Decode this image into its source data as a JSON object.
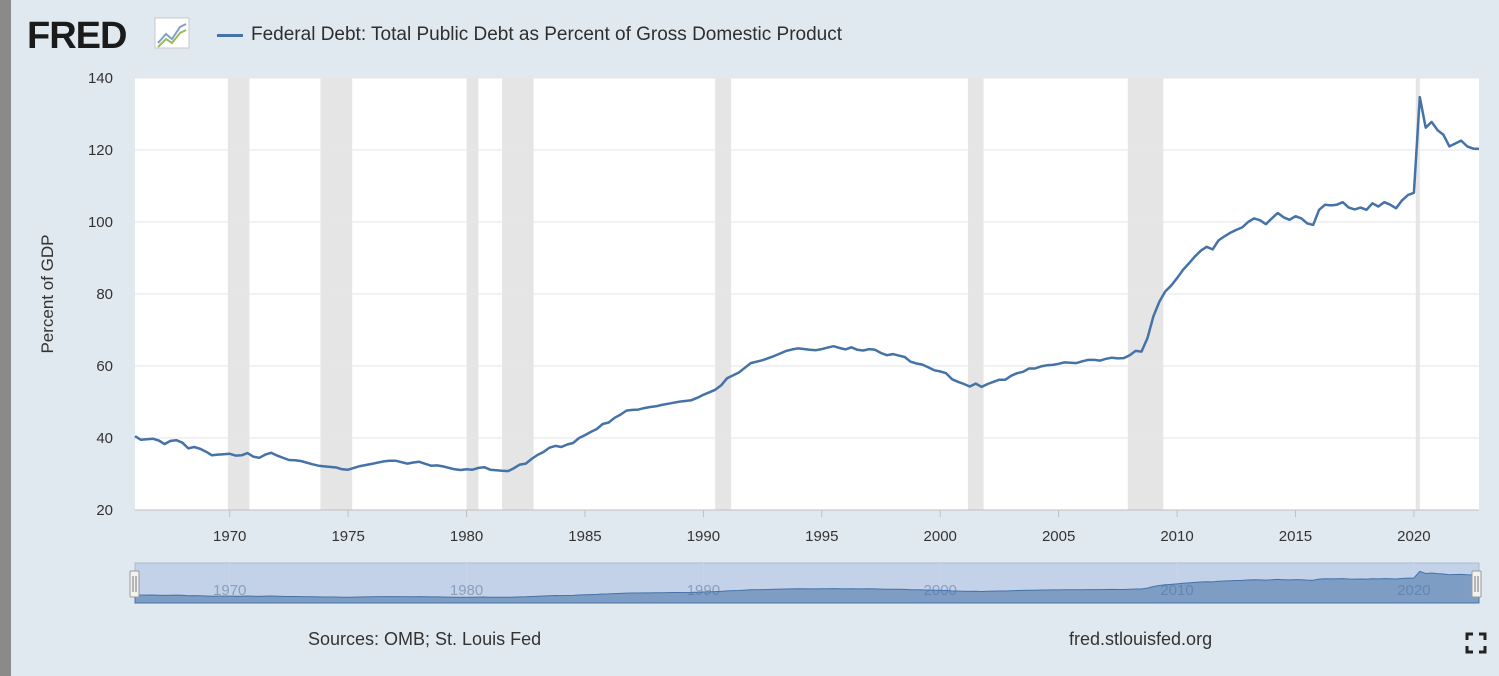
{
  "header": {
    "logo_text": "FRED",
    "legend_label": "Federal Debt: Total Public Debt as Percent of Gross Domestic Product"
  },
  "footer": {
    "sources": "Sources: OMB; St. Louis Fed",
    "site": "fred.stlouisfed.org"
  },
  "colors": {
    "series": "#4572a7",
    "recession": "#e5e5e5",
    "navigator_fill": "#b5c8e4",
    "background": "#e1e9f0"
  },
  "chart_data": {
    "type": "line",
    "title": "",
    "xlabel": "",
    "ylabel": "Percent of GDP",
    "xlim": [
      1966.0,
      2022.75
    ],
    "ylim": [
      20,
      140
    ],
    "yticks": [
      20,
      40,
      60,
      80,
      100,
      120,
      140
    ],
    "xticks": [
      1970,
      1975,
      1980,
      1985,
      1990,
      1995,
      2000,
      2005,
      2010,
      2015,
      2020
    ],
    "navigator_ticks": [
      1970,
      1980,
      1990,
      2000,
      2010,
      2020
    ],
    "grid": true,
    "legend": "top-left",
    "recessions": [
      [
        1969.92,
        1970.83
      ],
      [
        1973.83,
        1975.17
      ],
      [
        1980.0,
        1980.5
      ],
      [
        1981.5,
        1982.83
      ],
      [
        1990.5,
        1991.17
      ],
      [
        2001.17,
        2001.83
      ],
      [
        2007.92,
        2009.42
      ],
      [
        2020.08,
        2020.25
      ]
    ],
    "series": [
      {
        "name": "Federal Debt: Total Public Debt as Percent of Gross Domestic Product",
        "x": [
          1966.0,
          1966.25,
          1966.75,
          1967.0,
          1967.25,
          1967.5,
          1967.75,
          1968.0,
          1968.25,
          1968.5,
          1968.75,
          1969.0,
          1969.25,
          1969.5,
          1969.75,
          1970.0,
          1970.25,
          1970.5,
          1970.75,
          1971.0,
          1971.25,
          1971.5,
          1971.75,
          1972.0,
          1972.5,
          1972.75,
          1973.0,
          1973.5,
          1973.75,
          1974.0,
          1974.5,
          1974.75,
          1975.0,
          1975.5,
          1975.75,
          1976.0,
          1976.5,
          1976.75,
          1977.0,
          1977.5,
          1977.75,
          1978.0,
          1978.5,
          1978.75,
          1979.0,
          1979.5,
          1979.75,
          1980.0,
          1980.25,
          1980.5,
          1980.75,
          1981.0,
          1981.5,
          1981.75,
          1982.0,
          1982.25,
          1982.5,
          1982.75,
          1983.0,
          1983.25,
          1983.5,
          1983.75,
          1984.0,
          1984.25,
          1984.5,
          1984.75,
          1985.0,
          1985.25,
          1985.5,
          1985.75,
          1986.0,
          1986.25,
          1986.5,
          1986.75,
          1987.0,
          1987.25,
          1987.5,
          1987.75,
          1988.0,
          1988.25,
          1988.5,
          1988.75,
          1989.0,
          1989.5,
          1989.75,
          1990.0,
          1990.5,
          1990.75,
          1991.0,
          1991.25,
          1991.5,
          1991.75,
          1992.0,
          1992.5,
          1992.75,
          1993.0,
          1993.25,
          1993.5,
          1993.75,
          1994.0,
          1994.5,
          1994.75,
          1995.0,
          1995.25,
          1995.5,
          1995.75,
          1996.0,
          1996.25,
          1996.5,
          1996.75,
          1997.0,
          1997.25,
          1997.5,
          1997.75,
          1998.0,
          1998.25,
          1998.5,
          1998.75,
          1999.0,
          1999.25,
          1999.5,
          1999.75,
          2000.0,
          2000.25,
          2000.5,
          2000.75,
          2001.0,
          2001.25,
          2001.5,
          2001.75,
          2002.0,
          2002.25,
          2002.5,
          2002.75,
          2003.0,
          2003.25,
          2003.5,
          2003.75,
          2004.0,
          2004.25,
          2004.5,
          2004.75,
          2005.0,
          2005.25,
          2005.5,
          2005.75,
          2006.0,
          2006.25,
          2006.5,
          2006.75,
          2007.0,
          2007.25,
          2007.5,
          2007.75,
          2008.0,
          2008.25,
          2008.5,
          2008.75,
          2009.0,
          2009.25,
          2009.5,
          2009.75,
          2010.0,
          2010.25,
          2010.5,
          2010.75,
          2011.0,
          2011.25,
          2011.5,
          2011.75,
          2012.0,
          2012.25,
          2012.5,
          2012.75,
          2013.0,
          2013.25,
          2013.5,
          2013.75,
          2014.0,
          2014.25,
          2014.5,
          2014.75,
          2015.0,
          2015.25,
          2015.5,
          2015.75,
          2016.0,
          2016.25,
          2016.5,
          2016.75,
          2017.0,
          2017.25,
          2017.5,
          2017.75,
          2018.0,
          2018.25,
          2018.5,
          2018.75,
          2019.0,
          2019.25,
          2019.5,
          2019.75,
          2020.0,
          2020.25,
          2020.5,
          2020.75,
          2021.0,
          2021.25,
          2021.5,
          2021.75,
          2022.0,
          2022.25,
          2022.5,
          2022.75
        ],
        "values": [
          40.5,
          39.5,
          39.8,
          39.3,
          38.3,
          39.2,
          39.4,
          38.7,
          37.1,
          37.5,
          37.0,
          36.2,
          35.2,
          35.4,
          35.5,
          35.6,
          35.1,
          35.2,
          35.8,
          34.8,
          34.5,
          35.4,
          35.9,
          35.1,
          33.9,
          33.8,
          33.6,
          32.7,
          32.3,
          32.1,
          31.8,
          31.3,
          31.2,
          32.2,
          32.5,
          32.8,
          33.5,
          33.7,
          33.7,
          32.9,
          33.2,
          33.4,
          32.3,
          32.4,
          32.1,
          31.3,
          31.1,
          31.3,
          31.2,
          31.7,
          31.9,
          31.2,
          30.9,
          30.8,
          31.6,
          32.6,
          32.9,
          34.2,
          35.3,
          36.1,
          37.3,
          37.8,
          37.5,
          38.2,
          38.6,
          40.0,
          40.8,
          41.7,
          42.5,
          43.9,
          44.3,
          45.6,
          46.5,
          47.6,
          47.8,
          47.9,
          48.3,
          48.6,
          48.8,
          49.2,
          49.5,
          49.8,
          50.1,
          50.5,
          51.2,
          52.0,
          53.4,
          54.6,
          56.6,
          57.4,
          58.2,
          59.5,
          60.8,
          61.6,
          62.2,
          62.8,
          63.5,
          64.2,
          64.6,
          64.9,
          64.5,
          64.4,
          64.7,
          65.1,
          65.5,
          65.0,
          64.6,
          65.2,
          64.5,
          64.3,
          64.7,
          64.5,
          63.6,
          63.0,
          63.3,
          62.9,
          62.5,
          61.2,
          60.7,
          60.4,
          59.6,
          58.8,
          58.5,
          58.0,
          56.3,
          55.6,
          55.0,
          54.3,
          55.1,
          54.2,
          55.0,
          55.6,
          56.2,
          56.2,
          57.3,
          58.0,
          58.4,
          59.3,
          59.3,
          59.9,
          60.2,
          60.3,
          60.6,
          61.0,
          60.9,
          60.8,
          61.3,
          61.7,
          61.7,
          61.5,
          62.0,
          62.3,
          62.1,
          62.2,
          63.0,
          64.2,
          64.0,
          67.7,
          73.8,
          77.8,
          80.7,
          82.3,
          84.4,
          86.7,
          88.5,
          90.4,
          92.0,
          93.1,
          92.4,
          94.9,
          96.0,
          97.0,
          97.8,
          98.5,
          100.0,
          101.0,
          100.5,
          99.4,
          101.0,
          102.5,
          101.3,
          100.6,
          101.6,
          101.0,
          99.6,
          99.2,
          103.4,
          104.8,
          104.6,
          104.8,
          105.5,
          104.0,
          103.5,
          104.0,
          103.4,
          105.2,
          104.3,
          105.5,
          104.8,
          103.8,
          106.0,
          107.5,
          108.1,
          134.7,
          126.2,
          127.8,
          125.5,
          124.2,
          121.0,
          121.8,
          122.6,
          121.0,
          120.4,
          120.3
        ]
      }
    ]
  }
}
